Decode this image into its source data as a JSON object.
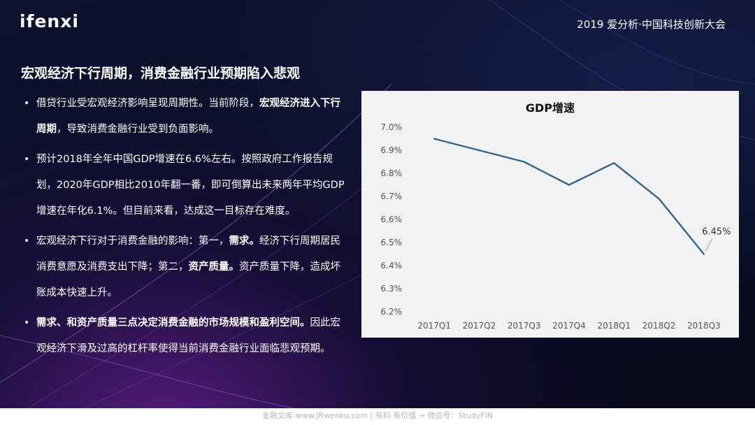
{
  "header": {
    "logo": "ifenxi",
    "conference": "2019 爱分析·中国科技创新大会"
  },
  "slide_title": "宏观经济下行周期，消费金融行业预期陷入悲观",
  "bullets": [
    {
      "parts": [
        {
          "text": "借贷行业受宏观经济影响呈现周期性。当前阶段，",
          "bold": false
        },
        {
          "text": "宏观经济进入下行周期",
          "bold": true
        },
        {
          "text": "，导致消费金融行业受到负面影响。",
          "bold": false
        }
      ]
    },
    {
      "parts": [
        {
          "text": "预计2018年全年中国GDP增速在6.6%左右。按照政府工作报告规划，2020年GDP相比2010年翻一番，即可倒算出未来两年平均GDP增速在年化6.1%。但目前来看，达成这一目标存在难度。",
          "bold": false
        }
      ]
    },
    {
      "parts": [
        {
          "text": "宏观经济下行对于消费金融的影响：第一，",
          "bold": false
        },
        {
          "text": "需求。",
          "bold": true
        },
        {
          "text": "经济下行周期居民消费意愿及消费支出下降；第二，",
          "bold": false
        },
        {
          "text": "资产质量。",
          "bold": true
        },
        {
          "text": "资产质量下降，造成坏账成本快速上升。",
          "bold": false
        }
      ]
    },
    {
      "parts": [
        {
          "text": "需求、和资产质量三点决定消费金融的市场规模和盈利空间。",
          "bold": true
        },
        {
          "text": "因此宏观经济下滑及过高的杠杆率使得当前消费金融行业面临悲观预期。",
          "bold": false
        }
      ]
    }
  ],
  "chart_data": {
    "type": "line",
    "title": "GDP增速",
    "categories": [
      "2017Q1",
      "2017Q2",
      "2017Q3",
      "2017Q4",
      "2018Q1",
      "2018Q2",
      "2018Q3"
    ],
    "series": [
      {
        "values": [
          6.95,
          6.9,
          6.85,
          6.75,
          6.845,
          6.69,
          6.45
        ]
      }
    ],
    "ylim": [
      6.2,
      7.0
    ],
    "yticks": [
      "6.2%",
      "6.3%",
      "6.4%",
      "6.5%",
      "6.6%",
      "6.7%",
      "6.8%",
      "6.9%",
      "7.0%"
    ],
    "annotations": [
      {
        "category": "2018Q3",
        "text": "6.45%"
      }
    ],
    "grid": false,
    "line_color": "#2e6690"
  },
  "footer": "金融文库-www.JRwenku.com | 有料 有价值 → 微信号：StudyFIN"
}
